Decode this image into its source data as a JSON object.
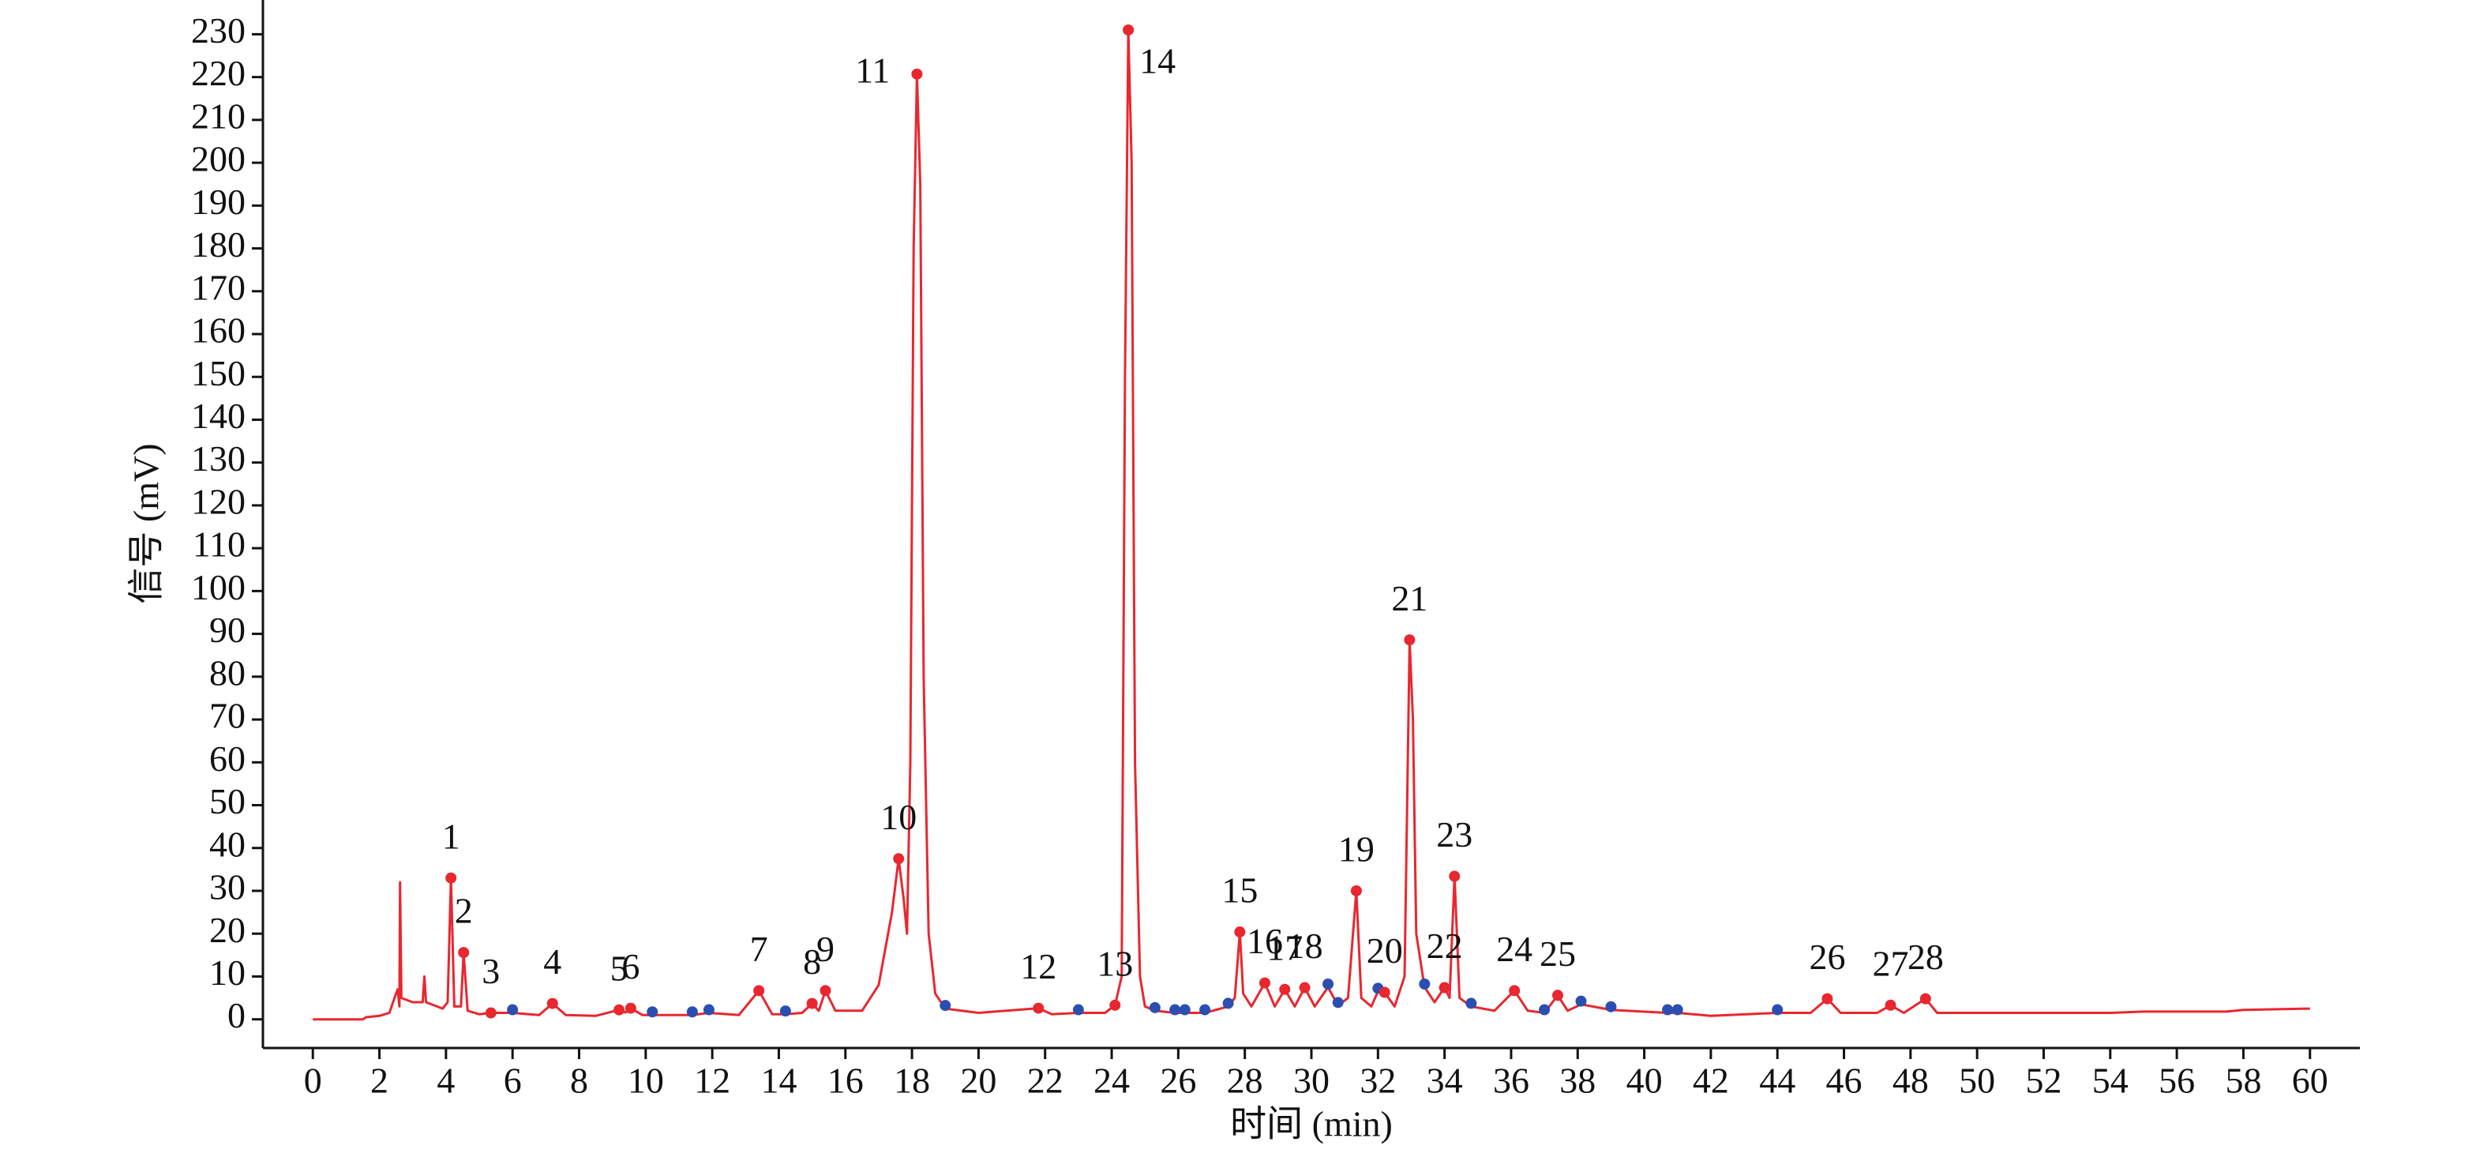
{
  "chart_data": {
    "type": "line",
    "x_label": "时间 (min)",
    "y_label": "信号 (mV)",
    "xlim": [
      -1.5,
      61.5
    ],
    "ylim": [
      -6.7,
      238
    ],
    "xticks": [
      0,
      2,
      4,
      6,
      8,
      10,
      12,
      14,
      16,
      18,
      20,
      22,
      24,
      26,
      28,
      30,
      32,
      34,
      36,
      38,
      40,
      42,
      44,
      46,
      48,
      50,
      52,
      54,
      56,
      58,
      60
    ],
    "yticks": [
      0,
      10,
      20,
      30,
      40,
      50,
      60,
      70,
      80,
      90,
      100,
      110,
      120,
      130,
      140,
      150,
      160,
      170,
      180,
      190,
      200,
      210,
      220,
      230
    ],
    "x": [
      0,
      1.5,
      1.6,
      2.0,
      2.3,
      2.5,
      2.55,
      2.6,
      2.62,
      2.66,
      3.0,
      3.3,
      3.35,
      3.4,
      3.9,
      4.05,
      4.15,
      4.25,
      4.45,
      4.53,
      4.65,
      5.0,
      5.35,
      6.0,
      6.8,
      7.2,
      7.6,
      8.5,
      9.2,
      9.4,
      9.55,
      9.9,
      10.2,
      11.4,
      11.9,
      12.8,
      13.4,
      13.8,
      14.2,
      14.7,
      15.0,
      15.2,
      15.4,
      15.7,
      16.5,
      17.0,
      17.4,
      17.6,
      17.75,
      17.85,
      17.95,
      18.05,
      18.15,
      18.25,
      18.35,
      18.5,
      18.7,
      19.0,
      20,
      21.8,
      22.2,
      23.0,
      23.8,
      24.1,
      24.3,
      24.4,
      24.5,
      24.6,
      24.7,
      24.85,
      25.0,
      25.3,
      25.9,
      26.2,
      26.8,
      27.5,
      27.7,
      27.85,
      27.95,
      28.2,
      28.6,
      28.9,
      29.2,
      29.5,
      29.8,
      30.1,
      30.5,
      30.8,
      31.1,
      31.35,
      31.5,
      31.8,
      32.0,
      32.2,
      32.5,
      32.8,
      32.95,
      33.05,
      33.15,
      33.4,
      33.7,
      34.0,
      34.15,
      34.3,
      34.45,
      34.8,
      35.5,
      36.1,
      36.5,
      37.0,
      37.4,
      37.7,
      38.1,
      39.0,
      40.7,
      41.0,
      42,
      44.0,
      45.0,
      45.5,
      45.9,
      47.0,
      47.4,
      47.8,
      48.45,
      48.8,
      50,
      54,
      55,
      57.5,
      58,
      60
    ],
    "series": [
      {
        "color": "#e8272f",
        "values": [
          0,
          0,
          0.5,
          0.8,
          1.5,
          6,
          7,
          3,
          32,
          5,
          4,
          4,
          10,
          4,
          2.5,
          4,
          33,
          3,
          3,
          15.6,
          2,
          1.2,
          1.5,
          1.5,
          1.0,
          3.7,
          1,
          0.8,
          2.2,
          1.6,
          2.6,
          1,
          1,
          1,
          1.5,
          1,
          6.7,
          1.2,
          1.2,
          1.5,
          3.7,
          2,
          6.7,
          2,
          2,
          8,
          25,
          37.5,
          28,
          20,
          60,
          180,
          220.7,
          195,
          80,
          20,
          6,
          2.5,
          1.5,
          2.6,
          1.2,
          1.5,
          1.5,
          3.3,
          10,
          150,
          231,
          200,
          60,
          10,
          3,
          2,
          1.5,
          1.5,
          1.5,
          3,
          5,
          20.4,
          6,
          3,
          8.5,
          3,
          7,
          3,
          7.4,
          3,
          7.5,
          3.2,
          5,
          30,
          5,
          3,
          6.5,
          6.3,
          3,
          10,
          88.6,
          70,
          20,
          7.5,
          4,
          7.4,
          5,
          33.4,
          5,
          3,
          2,
          6.7,
          2,
          1.5,
          5.6,
          2,
          3.5,
          2.2,
          1.5,
          1.5,
          0.8,
          1.5,
          1.5,
          4.8,
          1.5,
          1.5,
          3.3,
          1.5,
          4.8,
          1.5,
          1.5,
          1.5,
          1.8,
          1.8,
          2.2,
          2.5
        ]
      }
    ],
    "peaks": {
      "color": "#e8272f",
      "labels": [
        "1",
        "2",
        "3",
        "4",
        "5",
        "6",
        "7",
        "8",
        "9",
        "10",
        "11",
        "12",
        "13",
        "14",
        "15",
        "16",
        "17",
        "18",
        "19",
        "20",
        "21",
        "22",
        "23",
        "24",
        "25",
        "26",
        "27",
        "28"
      ],
      "x": [
        4.15,
        4.53,
        5.35,
        7.2,
        9.2,
        9.55,
        13.4,
        15.0,
        15.4,
        17.6,
        18.15,
        21.8,
        24.1,
        24.5,
        27.85,
        28.6,
        29.2,
        29.8,
        31.35,
        32.2,
        32.95,
        34.0,
        34.3,
        36.1,
        37.4,
        45.5,
        47.4,
        48.45
      ],
      "values": [
        33,
        15.6,
        1.5,
        3.7,
        2.2,
        2.6,
        6.7,
        3.7,
        6.7,
        37.5,
        220.7,
        2.6,
        3.3,
        231,
        20.4,
        8.5,
        7.0,
        7.4,
        30,
        6.3,
        88.6,
        7.4,
        33.4,
        6.7,
        5.6,
        4.8,
        3.3,
        4.8
      ]
    },
    "markers": {
      "color": "#2a4fb0",
      "x": [
        6.0,
        10.2,
        11.4,
        11.9,
        14.2,
        19.0,
        23.0,
        25.3,
        25.9,
        26.2,
        26.8,
        27.5,
        30.5,
        30.8,
        32.0,
        33.4,
        34.8,
        37.0,
        38.1,
        39.0,
        40.7,
        41.0,
        44.0
      ],
      "values": [
        1.5,
        1,
        1,
        1.5,
        1.2,
        2.5,
        1.5,
        2,
        1.5,
        1.5,
        1.5,
        3,
        7.5,
        3.2,
        6.5,
        7.5,
        3,
        1.5,
        3.5,
        2.2,
        1.5,
        1.5,
        1.5
      ]
    }
  }
}
